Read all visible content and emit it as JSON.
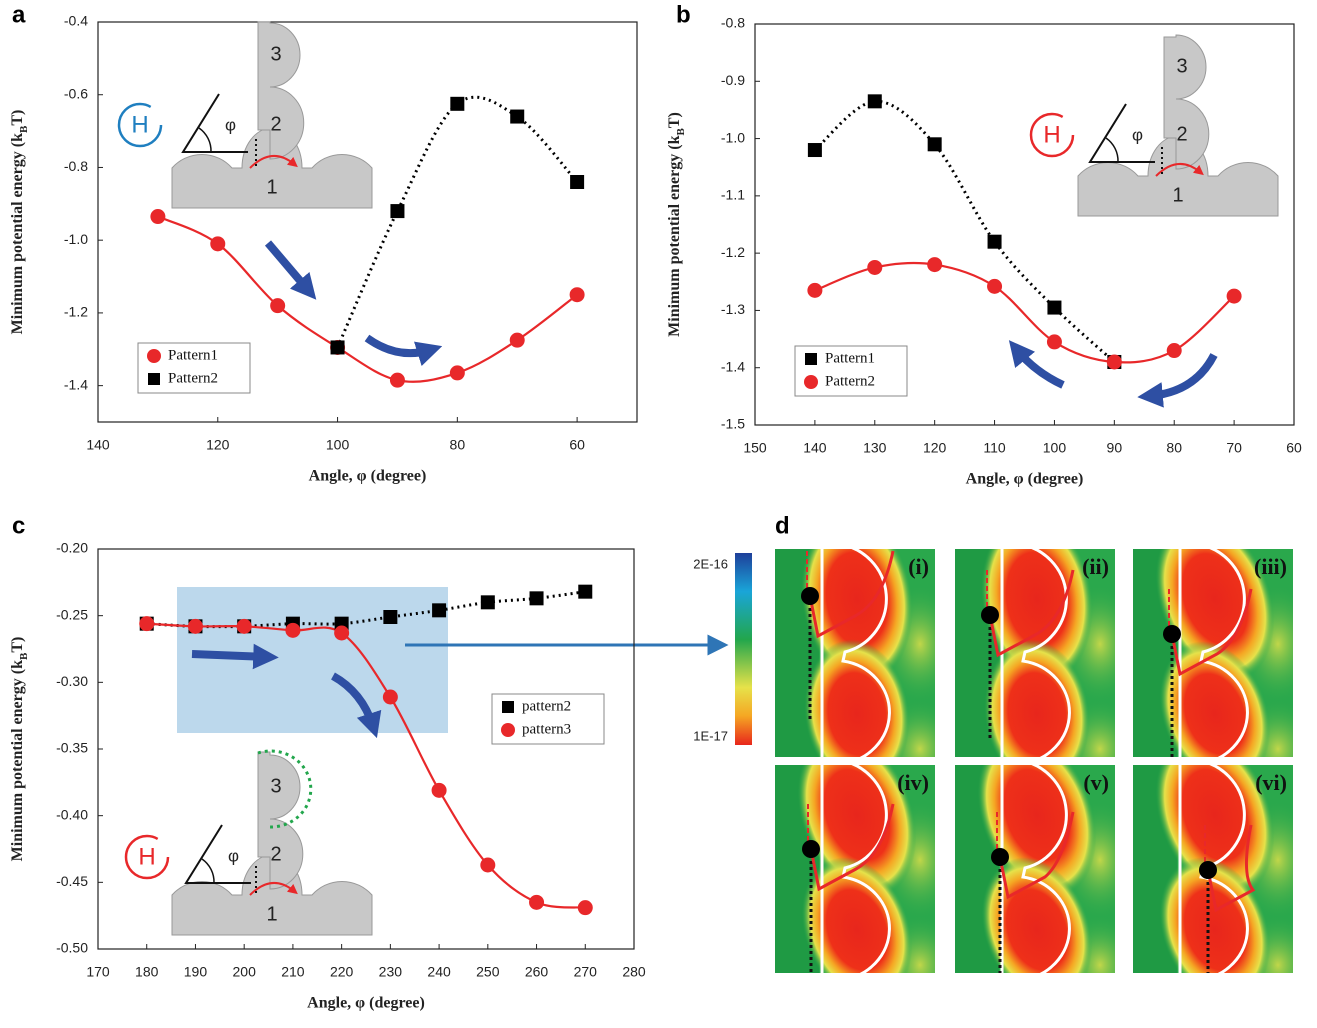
{
  "chart_data": [
    {
      "type": "line",
      "panel_label": "a",
      "x_label": "Angle, φ (degree)",
      "y_label": "Minimum potential energy (k",
      "y_label_sub": "B",
      "y_label_end": "T)",
      "xlim": [
        140,
        50
      ],
      "xticks": [
        140,
        120,
        100,
        80,
        60
      ],
      "ylim": [
        -1.5,
        -0.4
      ],
      "yticks": [
        -0.4,
        -0.6,
        -0.8,
        {
          "value": -1.0,
          "label": "-1.0"
        },
        -1.2,
        -1.4
      ],
      "legend": "lower left",
      "inset_labels": [
        "3",
        "2",
        "1",
        "H",
        "φ"
      ],
      "series": [
        {
          "name": "Pattern1",
          "color": "#e8282a",
          "marker": "circle",
          "linestyle": "solid",
          "x": [
            130,
            120,
            110,
            100,
            90,
            80,
            70,
            60
          ],
          "values": [
            -0.935,
            -1.01,
            -1.18,
            -1.295,
            -1.385,
            -1.365,
            -1.275,
            -1.15
          ]
        },
        {
          "name": "Pattern2",
          "color": "#000000",
          "marker": "square",
          "linestyle": "dotted",
          "x": [
            100,
            90,
            80,
            70,
            60
          ],
          "values": [
            -1.295,
            -0.92,
            -0.625,
            -0.66,
            -0.84
          ]
        }
      ]
    },
    {
      "type": "line",
      "panel_label": "b",
      "x_label": "Angle, φ (degree)",
      "y_label": "Minimum potential energy (k",
      "y_label_sub": "B",
      "y_label_end": "T)",
      "xlim": [
        150,
        60
      ],
      "xticks": [
        150,
        140,
        130,
        120,
        110,
        100,
        90,
        80,
        70,
        60
      ],
      "ylim": [
        -1.5,
        -0.8
      ],
      "yticks": [
        -0.8,
        -0.9,
        {
          "value": -1.0,
          "label": "-1.0"
        },
        -1.1,
        -1.2,
        -1.3,
        -1.4,
        -1.5
      ],
      "legend": "lower left",
      "inset_labels": [
        "3",
        "2",
        "1",
        "H",
        "φ"
      ],
      "series": [
        {
          "name": "Pattern1",
          "color": "#000000",
          "marker": "square",
          "linestyle": "dotted",
          "x": [
            140,
            130,
            120,
            110,
            100,
            90
          ],
          "values": [
            -1.02,
            -0.935,
            -1.01,
            -1.18,
            -1.295,
            -1.39
          ]
        },
        {
          "name": "Pattern2",
          "color": "#e8282a",
          "marker": "circle",
          "linestyle": "solid",
          "x": [
            140,
            130,
            120,
            110,
            100,
            90,
            80,
            70
          ],
          "values": [
            -1.265,
            -1.225,
            -1.22,
            -1.258,
            -1.355,
            -1.39,
            -1.37,
            -1.275
          ]
        }
      ]
    },
    {
      "type": "line",
      "panel_label": "c",
      "x_label": "Angle, φ (degree)",
      "y_label": "Minimum potential energy (k",
      "y_label_sub": "B",
      "y_label_end": "T)",
      "xlim": [
        170,
        280
      ],
      "xticks": [
        170,
        180,
        190,
        200,
        210,
        220,
        230,
        240,
        250,
        260,
        270,
        280
      ],
      "ylim": [
        -0.5,
        -0.2
      ],
      "yticks": [
        {
          "value": -0.2,
          "label": "-0.20"
        },
        -0.25,
        {
          "value": -0.3,
          "label": "-0.30"
        },
        -0.35,
        {
          "value": -0.4,
          "label": "-0.40"
        },
        -0.45,
        {
          "value": -0.5,
          "label": "-0.50"
        }
      ],
      "legend": "center right",
      "inset_labels": [
        "3",
        "2",
        "1",
        "H",
        "φ"
      ],
      "series": [
        {
          "name": "pattern2",
          "color": "#000000",
          "marker": "square",
          "linestyle": "dotted",
          "x": [
            180,
            190,
            200,
            210,
            220,
            230,
            240,
            250,
            260,
            270
          ],
          "values": [
            -0.256,
            -0.258,
            -0.258,
            -0.256,
            -0.256,
            -0.251,
            -0.246,
            -0.24,
            -0.237,
            -0.232
          ]
        },
        {
          "name": "pattern3",
          "color": "#e8282a",
          "marker": "circle",
          "linestyle": "solid",
          "x": [
            180,
            190,
            200,
            210,
            220,
            230,
            240,
            250,
            260,
            270
          ],
          "values": [
            -0.256,
            -0.258,
            -0.258,
            -0.261,
            -0.263,
            -0.311,
            -0.381,
            -0.437,
            -0.465,
            -0.469
          ]
        }
      ]
    }
  ],
  "panel_d": {
    "label": "d",
    "colorbar": {
      "max_label": "2E-16",
      "min_label": "1E-17"
    },
    "tiles": [
      "(i)",
      "(ii)",
      "(iii)",
      "(iv)",
      "(v)",
      "(vi)"
    ]
  }
}
